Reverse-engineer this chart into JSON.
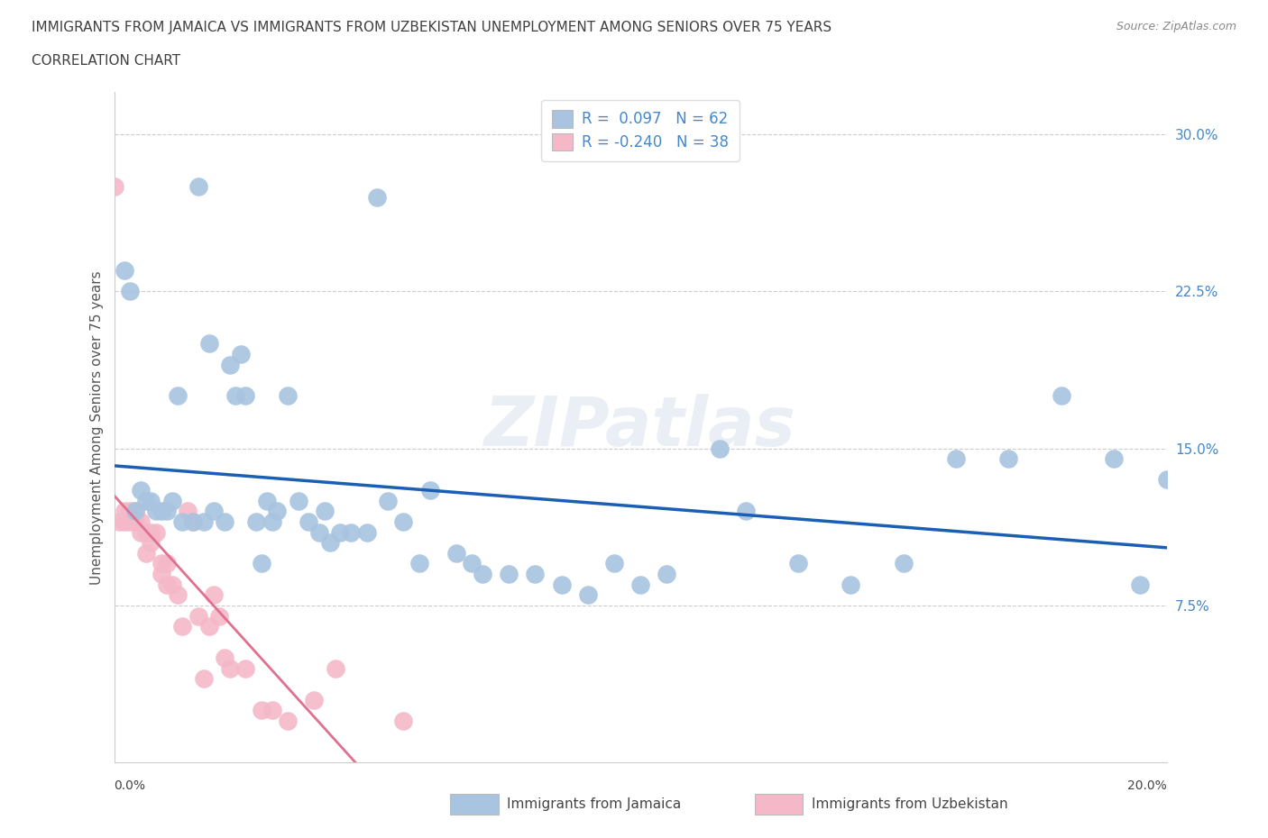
{
  "title_line1": "IMMIGRANTS FROM JAMAICA VS IMMIGRANTS FROM UZBEKISTAN UNEMPLOYMENT AMONG SENIORS OVER 75 YEARS",
  "title_line2": "CORRELATION CHART",
  "source_text": "Source: ZipAtlas.com",
  "ylabel": "Unemployment Among Seniors over 75 years",
  "watermark": "ZIPatlas",
  "legend_jamaica_R": "0.097",
  "legend_jamaica_N": "62",
  "legend_uzbekistan_R": "-0.240",
  "legend_uzbekistan_N": "38",
  "legend_label_jamaica": "Immigrants from Jamaica",
  "legend_label_uzbekistan": "Immigrants from Uzbekistan",
  "jamaica_color": "#a8c4e0",
  "uzbekistan_color": "#f4b8c8",
  "jamaica_line_color": "#1a5fb4",
  "uzbekistan_line_color": "#e07090",
  "title_color": "#404040",
  "right_ytick_color": "#4488cc",
  "xlim": [
    0.0,
    0.2
  ],
  "ylim": [
    0.0,
    0.32
  ],
  "yticks_right": [
    0.075,
    0.15,
    0.225,
    0.3
  ],
  "ytick_labels_right": [
    "7.5%",
    "15.0%",
    "22.5%",
    "30.0%"
  ],
  "jamaica_x": [
    0.016,
    0.002,
    0.018,
    0.024,
    0.022,
    0.05,
    0.003,
    0.012,
    0.005,
    0.006,
    0.007,
    0.008,
    0.004,
    0.009,
    0.01,
    0.011,
    0.013,
    0.015,
    0.017,
    0.019,
    0.021,
    0.023,
    0.025,
    0.027,
    0.029,
    0.031,
    0.033,
    0.035,
    0.037,
    0.039,
    0.041,
    0.043,
    0.045,
    0.048,
    0.052,
    0.055,
    0.06,
    0.065,
    0.07,
    0.075,
    0.08,
    0.085,
    0.09,
    0.095,
    0.1,
    0.105,
    0.03,
    0.04,
    0.115,
    0.12,
    0.13,
    0.14,
    0.15,
    0.16,
    0.17,
    0.18,
    0.19,
    0.195,
    0.2,
    0.028,
    0.058,
    0.068
  ],
  "jamaica_y": [
    0.275,
    0.235,
    0.2,
    0.195,
    0.19,
    0.27,
    0.225,
    0.175,
    0.13,
    0.125,
    0.125,
    0.12,
    0.12,
    0.12,
    0.12,
    0.125,
    0.115,
    0.115,
    0.115,
    0.12,
    0.115,
    0.175,
    0.175,
    0.115,
    0.125,
    0.12,
    0.175,
    0.125,
    0.115,
    0.11,
    0.105,
    0.11,
    0.11,
    0.11,
    0.125,
    0.115,
    0.13,
    0.1,
    0.09,
    0.09,
    0.09,
    0.085,
    0.08,
    0.095,
    0.085,
    0.09,
    0.115,
    0.12,
    0.15,
    0.12,
    0.095,
    0.085,
    0.095,
    0.145,
    0.145,
    0.175,
    0.145,
    0.085,
    0.135,
    0.095,
    0.095,
    0.095
  ],
  "uzbekistan_x": [
    0.0,
    0.001,
    0.002,
    0.002,
    0.003,
    0.003,
    0.004,
    0.004,
    0.005,
    0.005,
    0.006,
    0.006,
    0.007,
    0.007,
    0.008,
    0.009,
    0.009,
    0.01,
    0.01,
    0.011,
    0.012,
    0.013,
    0.014,
    0.015,
    0.016,
    0.017,
    0.018,
    0.019,
    0.02,
    0.021,
    0.022,
    0.025,
    0.028,
    0.03,
    0.033,
    0.038,
    0.042,
    0.055
  ],
  "uzbekistan_y": [
    0.275,
    0.115,
    0.115,
    0.12,
    0.12,
    0.115,
    0.115,
    0.12,
    0.11,
    0.115,
    0.1,
    0.11,
    0.105,
    0.11,
    0.11,
    0.09,
    0.095,
    0.085,
    0.095,
    0.085,
    0.08,
    0.065,
    0.12,
    0.115,
    0.07,
    0.04,
    0.065,
    0.08,
    0.07,
    0.05,
    0.045,
    0.045,
    0.025,
    0.025,
    0.02,
    0.03,
    0.045,
    0.02
  ]
}
